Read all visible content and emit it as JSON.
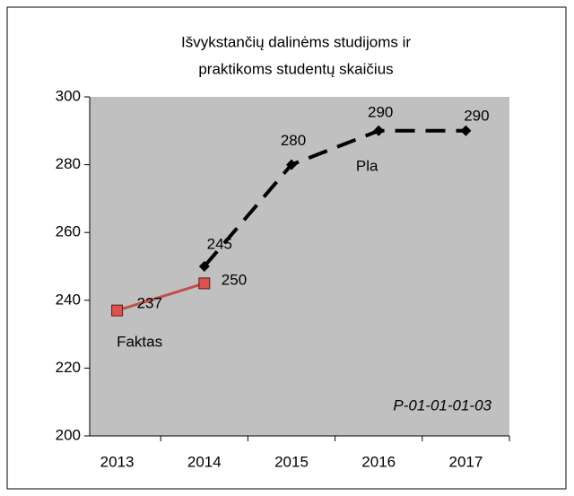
{
  "chart_data": {
    "type": "line",
    "title": [
      "Išvykstančių dalinėms studijoms ir",
      "praktikoms studentų skaičius"
    ],
    "categories": [
      "2013",
      "2014",
      "2015",
      "2016",
      "2017"
    ],
    "series": [
      {
        "name": "Faktas",
        "color": "#c0504d",
        "marker": "square",
        "line_style": "solid",
        "values": [
          237,
          245,
          null,
          null,
          null
        ]
      },
      {
        "name": "Pla",
        "color": "#000000",
        "marker": "diamond",
        "line_style": "dashed",
        "values": [
          null,
          250,
          280,
          290,
          290
        ]
      }
    ],
    "annotations": [
      "P-01-01-01-03"
    ],
    "ylim": [
      200,
      300
    ],
    "yticks": [
      200,
      220,
      240,
      260,
      280,
      300
    ],
    "grid": false
  }
}
